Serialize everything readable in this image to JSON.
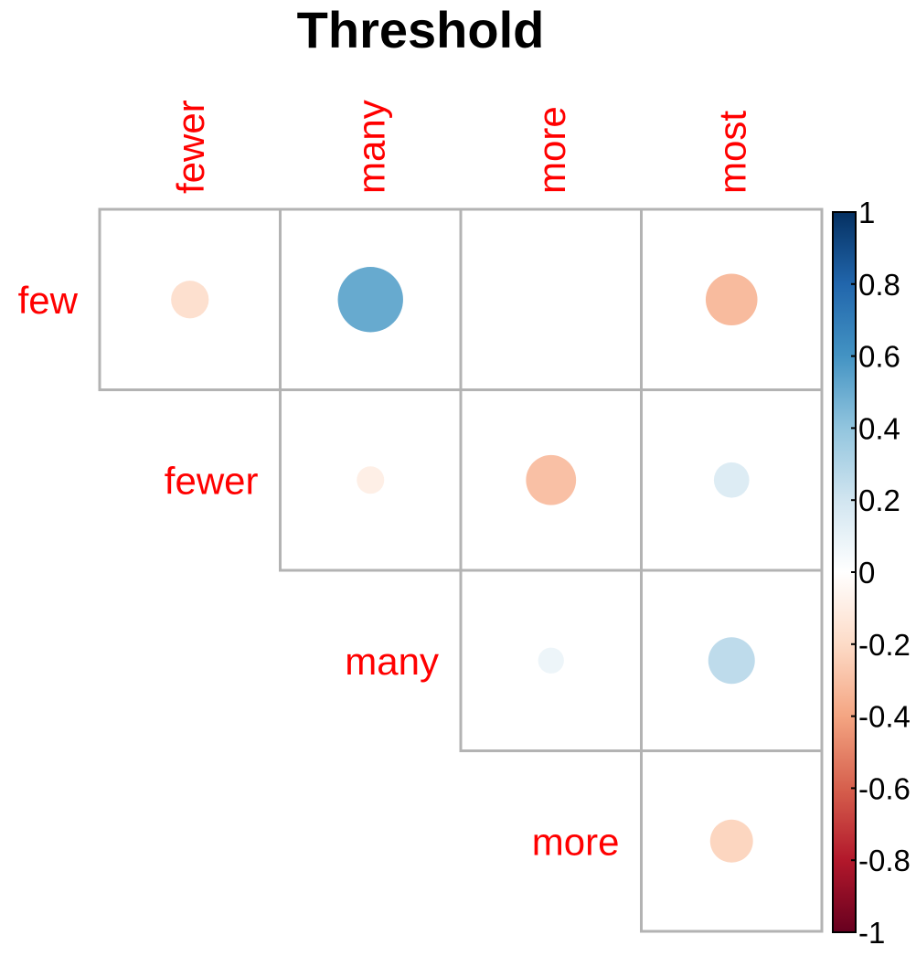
{
  "chart_data": {
    "type": "heatmap",
    "subtype": "correlation-circle-upper",
    "title": "Threshold",
    "columns": [
      "fewer",
      "many",
      "more",
      "most"
    ],
    "rows": [
      "few",
      "fewer",
      "many",
      "more"
    ],
    "values": [
      [
        -0.17,
        0.51,
        0.0,
        -0.32
      ],
      [
        null,
        -0.09,
        -0.3,
        0.15
      ],
      [
        null,
        null,
        0.08,
        0.26
      ],
      [
        null,
        null,
        null,
        -0.22
      ]
    ],
    "colorbar": {
      "ticks": [
        "1",
        "0.8",
        "0.6",
        "0.4",
        "0.2",
        "0",
        "-0.2",
        "-0.4",
        "-0.6",
        "-0.8",
        "-1"
      ],
      "range": [
        -1,
        1
      ],
      "colors": [
        "#67001f",
        "#b2182b",
        "#d6604d",
        "#f4a582",
        "#fddbc7",
        "#ffffff",
        "#d1e5f0",
        "#92c5de",
        "#4393c3",
        "#2166ac",
        "#053061"
      ]
    },
    "label_color": "#ff0000",
    "grid": true
  }
}
